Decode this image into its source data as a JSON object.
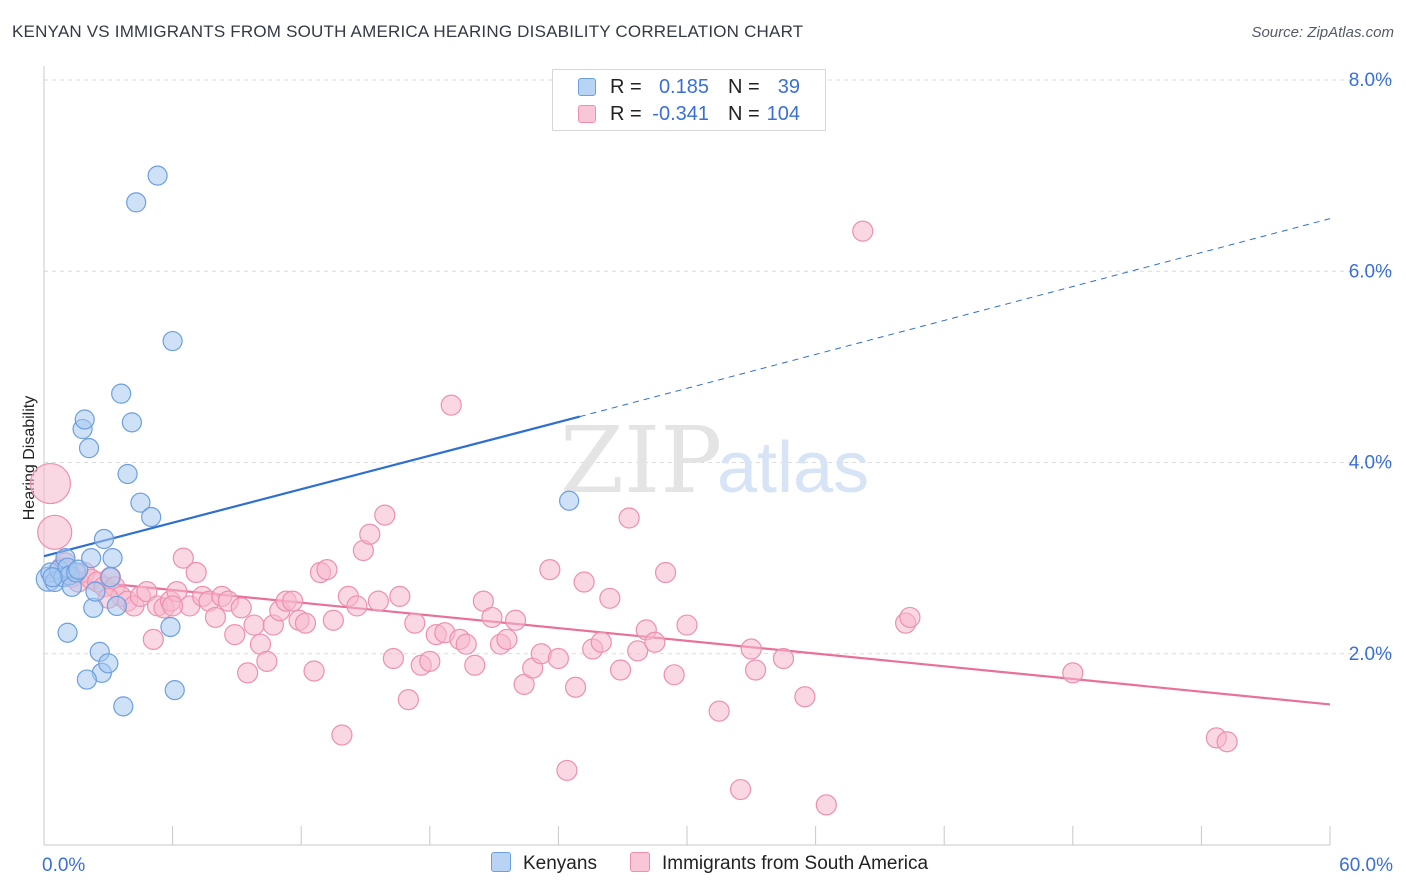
{
  "title": "KENYAN VS IMMIGRANTS FROM SOUTH AMERICA HEARING DISABILITY CORRELATION CHART",
  "source": "Source: ZipAtlas.com",
  "watermark": {
    "zip": "ZIP",
    "atlas": "atlas"
  },
  "colors": {
    "blue_fill": "#a8c8f0",
    "blue_stroke": "#6c9fe0",
    "blue_line": "#2f6fd0",
    "pink_fill": "#f6b8cc",
    "pink_stroke": "#ee8fae",
    "pink_line": "#e8709a",
    "axis_text": "#3a6fd8",
    "grid": "#dcdcdc"
  },
  "legend": {
    "rows": [
      {
        "r_label": "R =",
        "r_value": "0.185",
        "n_label": "N =",
        "n_value": "39"
      },
      {
        "r_label": "R =",
        "r_value": "-0.341",
        "n_label": "N =",
        "n_value": "104"
      }
    ]
  },
  "bottom_legend": {
    "series1": "Kenyans",
    "series2": "Immigrants from South America"
  },
  "chart_data": {
    "type": "scatter",
    "xlabel": "",
    "ylabel": "Hearing Disability",
    "xlim": [
      0,
      60
    ],
    "ylim": [
      0,
      8
    ],
    "x_tick_labels": [
      {
        "value": 0,
        "label": "0.0%"
      },
      {
        "value": 60,
        "label": "60.0%"
      }
    ],
    "y_tick_labels": [
      {
        "value": 2,
        "label": "2.0%"
      },
      {
        "value": 4,
        "label": "4.0%"
      },
      {
        "value": 6,
        "label": "6.0%"
      },
      {
        "value": 8,
        "label": "8.0%"
      }
    ],
    "grid": "horizontal dashed",
    "legend_position": "top-center",
    "series": [
      {
        "name": "Kenyans",
        "color": "#a8c8f0",
        "trend": {
          "x0": 0,
          "y0": 3.02,
          "x1": 25,
          "y1": 4.48,
          "dashed_to_x": 60,
          "dashed_to_y": 6.55
        },
        "points": [
          [
            0.2,
            2.78
          ],
          [
            0.3,
            2.85
          ],
          [
            0.5,
            2.75
          ],
          [
            0.7,
            2.88
          ],
          [
            0.9,
            2.8
          ],
          [
            1.0,
            3.0
          ],
          [
            1.1,
            2.9
          ],
          [
            1.2,
            2.82
          ],
          [
            1.3,
            2.7
          ],
          [
            1.5,
            2.85
          ],
          [
            1.6,
            2.88
          ],
          [
            1.1,
            2.22
          ],
          [
            1.8,
            4.35
          ],
          [
            1.9,
            4.45
          ],
          [
            2.1,
            4.15
          ],
          [
            2.2,
            3.0
          ],
          [
            2.3,
            2.48
          ],
          [
            2.4,
            2.65
          ],
          [
            2.6,
            2.02
          ],
          [
            2.7,
            1.8
          ],
          [
            2.0,
            1.73
          ],
          [
            2.8,
            3.2
          ],
          [
            3.0,
            1.9
          ],
          [
            3.1,
            2.8
          ],
          [
            3.2,
            3.0
          ],
          [
            3.4,
            2.5
          ],
          [
            3.6,
            4.72
          ],
          [
            3.9,
            3.88
          ],
          [
            3.7,
            1.45
          ],
          [
            4.1,
            4.42
          ],
          [
            4.3,
            6.72
          ],
          [
            4.5,
            3.58
          ],
          [
            5.0,
            3.43
          ],
          [
            5.3,
            7.0
          ],
          [
            5.9,
            2.28
          ],
          [
            6.0,
            5.27
          ],
          [
            6.1,
            1.62
          ],
          [
            24.5,
            3.6
          ],
          [
            0.4,
            2.8
          ]
        ],
        "sizes": [
          16,
          11,
          11,
          11,
          11,
          11,
          11,
          11,
          11,
          11,
          11,
          11,
          11,
          11,
          11,
          11,
          11,
          11,
          11,
          11,
          11,
          11,
          11,
          11,
          11,
          11,
          11,
          11,
          11,
          11,
          11,
          11,
          11,
          11,
          11,
          11,
          11,
          11,
          11
        ]
      },
      {
        "name": "Immigrants from South America",
        "color": "#f6b8cc",
        "trend": {
          "x0": 0,
          "y0": 2.8,
          "x1": 60,
          "y1": 1.47
        },
        "points": [
          [
            0.3,
            3.78
          ],
          [
            0.5,
            3.27
          ],
          [
            0.8,
            2.9
          ],
          [
            1.0,
            2.95
          ],
          [
            1.3,
            2.8
          ],
          [
            1.6,
            2.75
          ],
          [
            1.9,
            2.85
          ],
          [
            2.2,
            2.78
          ],
          [
            2.5,
            2.75
          ],
          [
            2.8,
            2.7
          ],
          [
            3.1,
            2.8
          ],
          [
            3.3,
            2.7
          ],
          [
            3.6,
            2.6
          ],
          [
            3.9,
            2.55
          ],
          [
            4.2,
            2.5
          ],
          [
            4.5,
            2.6
          ],
          [
            4.8,
            2.65
          ],
          [
            5.1,
            2.15
          ],
          [
            5.3,
            2.5
          ],
          [
            5.6,
            2.48
          ],
          [
            5.9,
            2.55
          ],
          [
            6.2,
            2.65
          ],
          [
            6.5,
            3.0
          ],
          [
            6.8,
            2.5
          ],
          [
            7.1,
            2.85
          ],
          [
            7.4,
            2.6
          ],
          [
            7.7,
            2.55
          ],
          [
            8.0,
            2.38
          ],
          [
            8.3,
            2.6
          ],
          [
            8.6,
            2.55
          ],
          [
            8.9,
            2.2
          ],
          [
            9.2,
            2.48
          ],
          [
            9.5,
            1.8
          ],
          [
            9.8,
            2.3
          ],
          [
            10.1,
            2.1
          ],
          [
            10.4,
            1.92
          ],
          [
            10.7,
            2.3
          ],
          [
            11.0,
            2.45
          ],
          [
            11.3,
            2.55
          ],
          [
            11.6,
            2.55
          ],
          [
            11.9,
            2.35
          ],
          [
            12.2,
            2.32
          ],
          [
            12.6,
            1.82
          ],
          [
            12.9,
            2.85
          ],
          [
            13.2,
            2.88
          ],
          [
            13.5,
            2.35
          ],
          [
            13.9,
            1.15
          ],
          [
            14.2,
            2.6
          ],
          [
            14.6,
            2.5
          ],
          [
            14.9,
            3.08
          ],
          [
            15.2,
            3.25
          ],
          [
            15.6,
            2.55
          ],
          [
            15.9,
            3.45
          ],
          [
            16.3,
            1.95
          ],
          [
            16.6,
            2.6
          ],
          [
            17.0,
            1.52
          ],
          [
            17.3,
            2.32
          ],
          [
            17.6,
            1.88
          ],
          [
            18.0,
            1.92
          ],
          [
            18.3,
            2.2
          ],
          [
            18.7,
            2.22
          ],
          [
            19.0,
            4.6
          ],
          [
            19.4,
            2.15
          ],
          [
            19.7,
            2.1
          ],
          [
            20.1,
            1.88
          ],
          [
            20.5,
            2.55
          ],
          [
            20.9,
            2.38
          ],
          [
            21.3,
            2.1
          ],
          [
            21.6,
            2.15
          ],
          [
            22.0,
            2.35
          ],
          [
            22.4,
            1.68
          ],
          [
            22.8,
            1.85
          ],
          [
            23.2,
            2.0
          ],
          [
            23.6,
            2.88
          ],
          [
            24.0,
            1.95
          ],
          [
            24.4,
            0.78
          ],
          [
            24.8,
            1.65
          ],
          [
            25.2,
            2.75
          ],
          [
            25.6,
            2.05
          ],
          [
            26.0,
            2.12
          ],
          [
            26.4,
            2.58
          ],
          [
            26.9,
            1.83
          ],
          [
            27.3,
            3.42
          ],
          [
            27.7,
            2.03
          ],
          [
            28.1,
            2.25
          ],
          [
            28.5,
            2.12
          ],
          [
            29.0,
            2.85
          ],
          [
            29.4,
            1.78
          ],
          [
            30.0,
            2.3
          ],
          [
            31.5,
            1.4
          ],
          [
            32.5,
            0.58
          ],
          [
            33.0,
            2.05
          ],
          [
            33.2,
            1.83
          ],
          [
            34.5,
            1.95
          ],
          [
            35.5,
            1.55
          ],
          [
            36.5,
            0.42
          ],
          [
            38.2,
            6.42
          ],
          [
            40.2,
            2.32
          ],
          [
            40.4,
            2.38
          ],
          [
            48.0,
            1.8
          ],
          [
            54.7,
            1.12
          ],
          [
            55.2,
            1.08
          ],
          [
            6.0,
            2.5
          ],
          [
            3.0,
            2.58
          ]
        ],
        "sizes": [
          32,
          26,
          12,
          12,
          12,
          12,
          12,
          12,
          12,
          12,
          12,
          12,
          12,
          12,
          12,
          12,
          12,
          12,
          12,
          12,
          12,
          12,
          12,
          12,
          12,
          12,
          12,
          12,
          12,
          12,
          12,
          12,
          12,
          12,
          12,
          12,
          12,
          12,
          12,
          12,
          12,
          12,
          12,
          12,
          12,
          12,
          12,
          12,
          12,
          12,
          12,
          12,
          12,
          12,
          12,
          12,
          12,
          12,
          12,
          12,
          12,
          12,
          12,
          12,
          12,
          12,
          12,
          12,
          12,
          12,
          12,
          12,
          12,
          12,
          12,
          12,
          12,
          12,
          12,
          12,
          12,
          12,
          12,
          12,
          12,
          12,
          12,
          12,
          12,
          12,
          12,
          12,
          12,
          12,
          12,
          12,
          12,
          12,
          12,
          12,
          12,
          12,
          12,
          12
        ]
      }
    ]
  }
}
